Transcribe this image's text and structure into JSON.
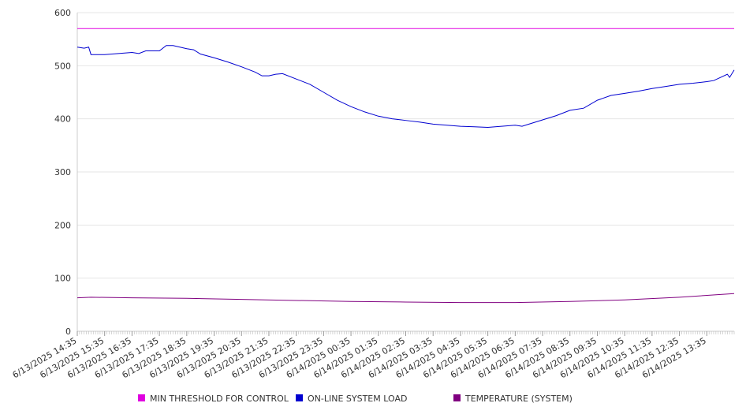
{
  "chart_data": {
    "type": "line",
    "title": "",
    "xlabel": "",
    "ylabel": "",
    "ylim": [
      0,
      600
    ],
    "yticks": [
      0,
      100,
      200,
      300,
      400,
      500,
      600
    ],
    "grid": "horizontal",
    "legend_position": "bottom",
    "x_tick_labels": [
      "6/13/2025 14:35",
      "6/13/2025 15:35",
      "6/13/2025 16:35",
      "6/13/2025 17:35",
      "6/13/2025 18:35",
      "6/13/2025 19:35",
      "6/13/2025 20:35",
      "6/13/2025 21:35",
      "6/13/2025 22:35",
      "6/13/2025 23:35",
      "6/14/2025 00:35",
      "6/14/2025 01:35",
      "6/14/2025 02:35",
      "6/14/2025 03:35",
      "6/14/2025 04:35",
      "6/14/2025 05:35",
      "6/14/2025 06:35",
      "6/14/2025 07:35",
      "6/14/2025 08:35",
      "6/14/2025 09:35",
      "6/14/2025 10:35",
      "6/14/2025 11:35",
      "6/14/2025 12:35",
      "6/14/2025 13:35"
    ],
    "x_start": "6/13/2025 14:35",
    "x_end": "6/14/2025 14:35",
    "series": [
      {
        "name": "MIN THRESHOLD FOR CONTROL",
        "color": "#e000e0",
        "points": [
          [
            "6/13/2025 14:35",
            570
          ],
          [
            "6/14/2025 14:35",
            570
          ]
        ]
      },
      {
        "name": "ON-LINE SYSTEM LOAD",
        "color": "#0000d0",
        "points": [
          [
            "6/13/2025 14:35",
            535
          ],
          [
            "6/13/2025 14:50",
            533
          ],
          [
            "6/13/2025 15:00",
            535
          ],
          [
            "6/13/2025 15:05",
            521
          ],
          [
            "6/13/2025 15:35",
            521
          ],
          [
            "6/13/2025 16:05",
            523
          ],
          [
            "6/13/2025 16:35",
            525
          ],
          [
            "6/13/2025 16:50",
            523
          ],
          [
            "6/13/2025 17:05",
            528
          ],
          [
            "6/13/2025 17:35",
            528
          ],
          [
            "6/13/2025 17:50",
            538
          ],
          [
            "6/13/2025 18:05",
            538
          ],
          [
            "6/13/2025 18:35",
            532
          ],
          [
            "6/13/2025 18:50",
            530
          ],
          [
            "6/13/2025 19:05",
            522
          ],
          [
            "6/13/2025 19:35",
            515
          ],
          [
            "6/13/2025 20:05",
            507
          ],
          [
            "6/13/2025 20:35",
            498
          ],
          [
            "6/13/2025 21:05",
            488
          ],
          [
            "6/13/2025 21:20",
            481
          ],
          [
            "6/13/2025 21:35",
            481
          ],
          [
            "6/13/2025 21:50",
            484
          ],
          [
            "6/13/2025 22:05",
            485
          ],
          [
            "6/13/2025 22:35",
            475
          ],
          [
            "6/13/2025 23:05",
            465
          ],
          [
            "6/13/2025 23:35",
            450
          ],
          [
            "6/14/2025 00:05",
            435
          ],
          [
            "6/14/2025 00:35",
            423
          ],
          [
            "6/14/2025 01:05",
            413
          ],
          [
            "6/14/2025 01:35",
            405
          ],
          [
            "6/14/2025 02:05",
            400
          ],
          [
            "6/14/2025 02:35",
            397
          ],
          [
            "6/14/2025 03:05",
            394
          ],
          [
            "6/14/2025 03:35",
            390
          ],
          [
            "6/14/2025 04:05",
            388
          ],
          [
            "6/14/2025 04:35",
            386
          ],
          [
            "6/14/2025 05:05",
            385
          ],
          [
            "6/14/2025 05:35",
            384
          ],
          [
            "6/14/2025 06:05",
            386
          ],
          [
            "6/14/2025 06:35",
            388
          ],
          [
            "6/14/2025 06:50",
            386
          ],
          [
            "6/14/2025 07:05",
            390
          ],
          [
            "6/14/2025 07:35",
            398
          ],
          [
            "6/14/2025 08:05",
            406
          ],
          [
            "6/14/2025 08:35",
            416
          ],
          [
            "6/14/2025 09:05",
            420
          ],
          [
            "6/14/2025 09:35",
            435
          ],
          [
            "6/14/2025 10:05",
            444
          ],
          [
            "6/14/2025 10:35",
            448
          ],
          [
            "6/14/2025 11:05",
            452
          ],
          [
            "6/14/2025 11:35",
            457
          ],
          [
            "6/14/2025 12:05",
            461
          ],
          [
            "6/14/2025 12:35",
            465
          ],
          [
            "6/14/2025 13:05",
            467
          ],
          [
            "6/14/2025 13:35",
            470
          ],
          [
            "6/14/2025 13:50",
            472
          ],
          [
            "6/14/2025 14:05",
            478
          ],
          [
            "6/14/2025 14:20",
            484
          ],
          [
            "6/14/2025 14:25",
            478
          ],
          [
            "6/14/2025 14:35",
            492
          ]
        ]
      },
      {
        "name": "TEMPERATURE (SYSTEM)",
        "color": "#800080",
        "points": [
          [
            "6/13/2025 14:35",
            63
          ],
          [
            "6/13/2025 15:05",
            64
          ],
          [
            "6/13/2025 16:35",
            63
          ],
          [
            "6/13/2025 18:35",
            62
          ],
          [
            "6/13/2025 20:35",
            60
          ],
          [
            "6/13/2025 22:35",
            58
          ],
          [
            "6/14/2025 00:35",
            56
          ],
          [
            "6/14/2025 02:35",
            55
          ],
          [
            "6/14/2025 04:35",
            54
          ],
          [
            "6/14/2025 06:35",
            54
          ],
          [
            "6/14/2025 08:35",
            56
          ],
          [
            "6/14/2025 10:35",
            59
          ],
          [
            "6/14/2025 12:35",
            64
          ],
          [
            "6/14/2025 14:35",
            71
          ]
        ]
      }
    ]
  }
}
